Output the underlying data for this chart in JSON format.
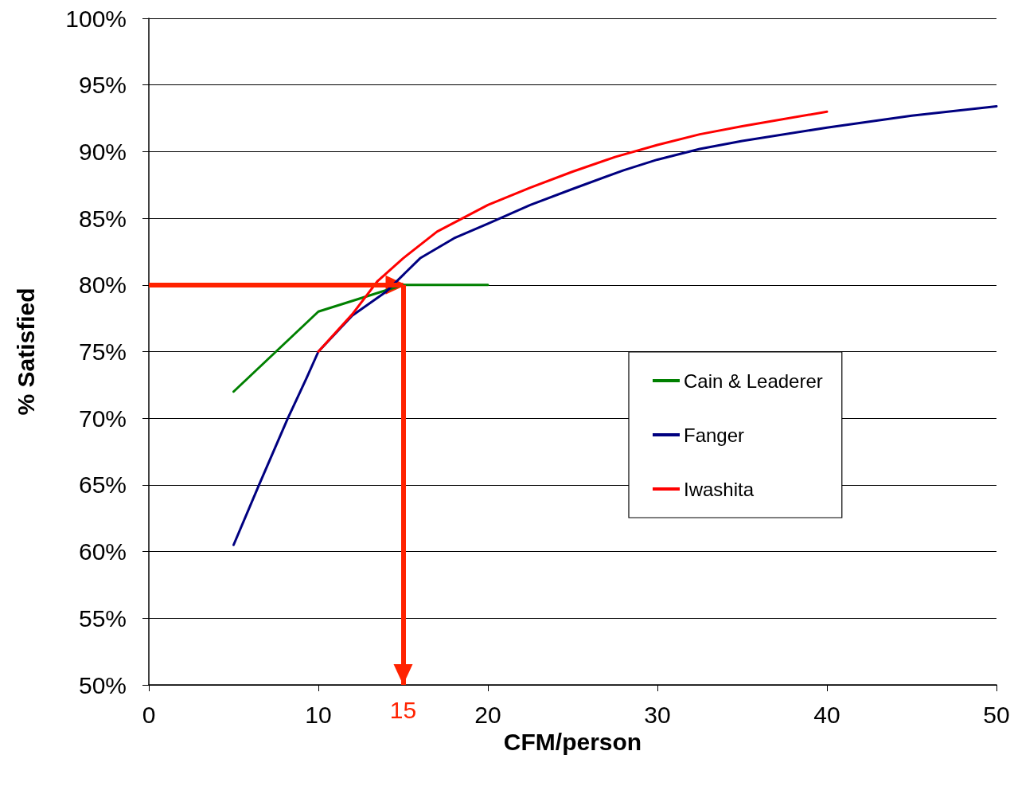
{
  "chart_data": {
    "type": "line",
    "xlabel": "CFM/person",
    "ylabel": "% Satisfied",
    "xlim": [
      0,
      50
    ],
    "xticks": [
      0,
      10,
      20,
      30,
      40,
      50
    ],
    "ylim": [
      50,
      100
    ],
    "yticks": [
      {
        "value": 50,
        "label": "50%"
      },
      {
        "value": 55,
        "label": "55%"
      },
      {
        "value": 60,
        "label": "60%"
      },
      {
        "value": 65,
        "label": "65%"
      },
      {
        "value": 70,
        "label": "70%"
      },
      {
        "value": 75,
        "label": "75%"
      },
      {
        "value": 80,
        "label": "80%"
      },
      {
        "value": 85,
        "label": "85%"
      },
      {
        "value": 90,
        "label": "90%"
      },
      {
        "value": 95,
        "label": "95%"
      },
      {
        "value": 100,
        "label": "100%"
      }
    ],
    "grid": "y",
    "legend": "right",
    "marker": "none",
    "line_style": "solid",
    "series": [
      {
        "name": "Cain & Leaderer",
        "color": "#008000",
        "x": [
          5,
          10,
          15,
          20
        ],
        "values": [
          72,
          78,
          80,
          80
        ]
      },
      {
        "name": "Fanger",
        "color": "#000080",
        "x": [
          5,
          6.5,
          8.2,
          9.3,
          10,
          12,
          14,
          16,
          18,
          20,
          22.5,
          25,
          28,
          30,
          32.5,
          35,
          40,
          45,
          50
        ],
        "values": [
          60.5,
          65,
          70,
          73,
          75,
          77.7,
          79.5,
          82,
          83.5,
          84.6,
          86,
          87.2,
          88.6,
          89.4,
          90.2,
          90.8,
          91.8,
          92.7,
          93.4
        ]
      },
      {
        "name": "Iwashita",
        "color": "#ff0000",
        "x": [
          10,
          12,
          13.5,
          15,
          17,
          20,
          22.5,
          25,
          27.5,
          30,
          32.5,
          35,
          40
        ],
        "values": [
          75,
          77.8,
          80.3,
          82,
          84,
          86,
          87.3,
          88.5,
          89.6,
          90.5,
          91.3,
          91.9,
          93
        ]
      }
    ],
    "ref_lines": [
      {
        "axis": "y",
        "value": 80,
        "label": null,
        "color": "#ff2200"
      },
      {
        "axis": "x",
        "value": 15,
        "label": "15",
        "color": "#ff2200"
      }
    ]
  }
}
